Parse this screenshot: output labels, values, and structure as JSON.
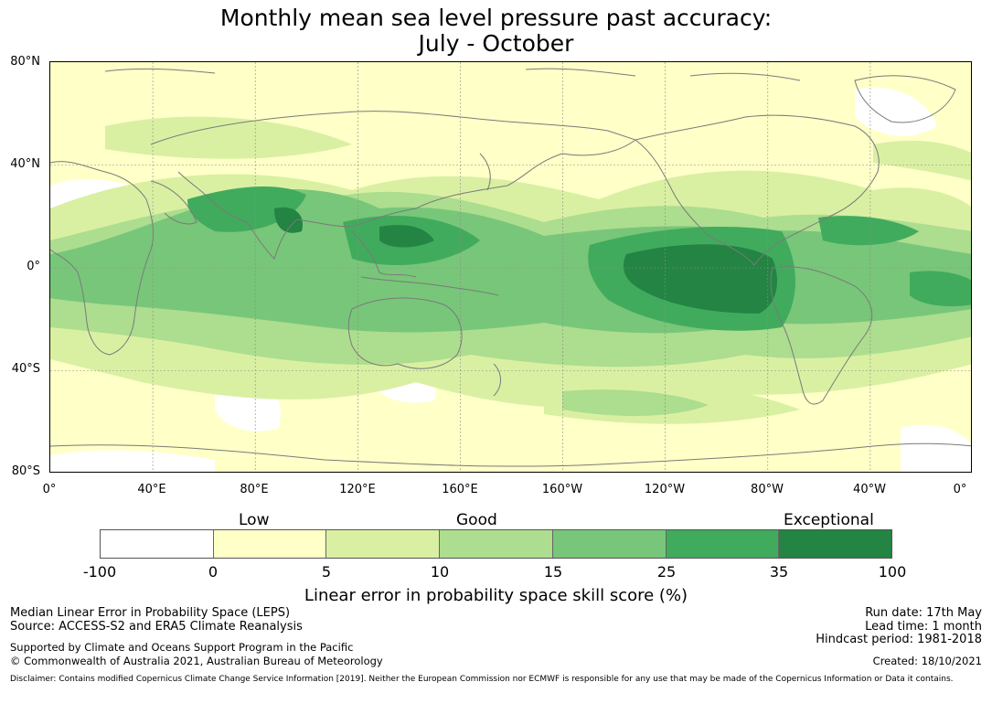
{
  "header": {
    "title_line1": "Monthly mean sea level pressure past accuracy:",
    "title_line2": "July - October"
  },
  "map": {
    "lat_ticks": [
      "80°N",
      "40°N",
      "0°",
      "40°S",
      "80°S"
    ],
    "lon_ticks": [
      "0°",
      "40°E",
      "80°E",
      "120°E",
      "160°E",
      "160°W",
      "120°W",
      "80°W",
      "40°W",
      "0°"
    ],
    "background_color": "#ffffc8",
    "coast_color": "#7a7a7a",
    "grid_color": "#8c8c8c"
  },
  "colorbar": {
    "labels_top": [
      "Low",
      "Good",
      "Exceptional"
    ],
    "ticks": [
      "-100",
      "0",
      "5",
      "10",
      "15",
      "25",
      "35",
      "100"
    ],
    "colors": [
      "#ffffff",
      "#ffffc8",
      "#d9f0a3",
      "#addd8e",
      "#78c679",
      "#41ab5d",
      "#238443"
    ],
    "title": "Linear error in probability space skill score (%)"
  },
  "footer": {
    "left_line1": "Median Linear Error in Probability Space (LEPS)",
    "left_line2": "Source: ACCESS-S2 and ERA5 Climate Reanalysis",
    "left_line3": "Supported by Climate and Oceans Support Program in the Pacific",
    "left_line4": "© Commonwealth of Australia 2021, Australian Bureau of Meteorology",
    "right_line1": "Run date: 17th May",
    "right_line2": "Lead time: 1 month",
    "right_line3": "Hindcast period: 1981-2018",
    "right_line4": "Created: 18/10/2021",
    "disclaimer": "Disclaimer: Contains modified Copernicus Climate Change Service Information [2019]. Neither the European Commission nor ECMWF is responsible for any use that may be made of the Copernicus Information or Data it contains."
  }
}
